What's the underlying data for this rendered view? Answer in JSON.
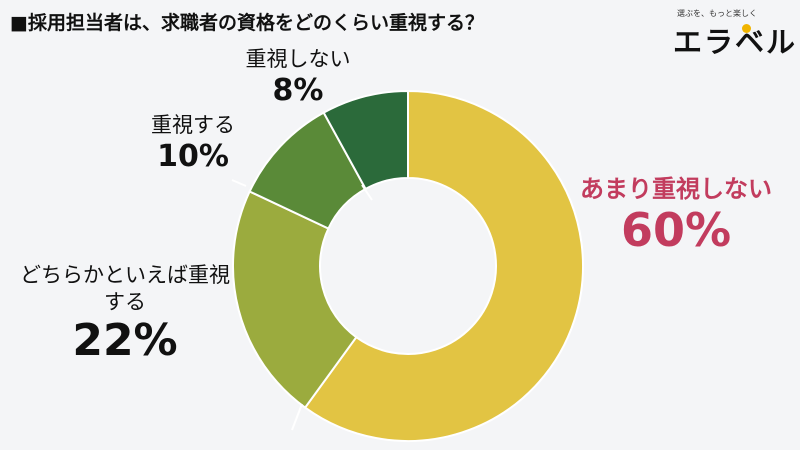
{
  "title": "■採用担当者は、求職者の資格をどのくらい重視する？",
  "logo": {
    "tagline": "選ぶを、もっと楽しく",
    "word": "エラベル"
  },
  "chart_data": {
    "type": "pie",
    "title": "■採用担当者は、求職者の資格をどのくらい重視する？",
    "categories": [
      "あまり重視しない",
      "どちらかといえば重視する",
      "重視する",
      "重視しない"
    ],
    "values": [
      60,
      22,
      10,
      8
    ],
    "unit": "%",
    "colors": [
      "#e2c443",
      "#9bab3e",
      "#5a8a38",
      "#2b6a3a"
    ],
    "donut": true,
    "start_angle_deg": 0,
    "direction": "clockwise"
  },
  "labels": [
    {
      "name": "あまり重視しない",
      "pct": "60%"
    },
    {
      "name": "どちらかといえば重視する",
      "pct": "22%"
    },
    {
      "name": "重視する",
      "pct": "10%"
    },
    {
      "name": "重視しない",
      "pct": "8%"
    }
  ]
}
